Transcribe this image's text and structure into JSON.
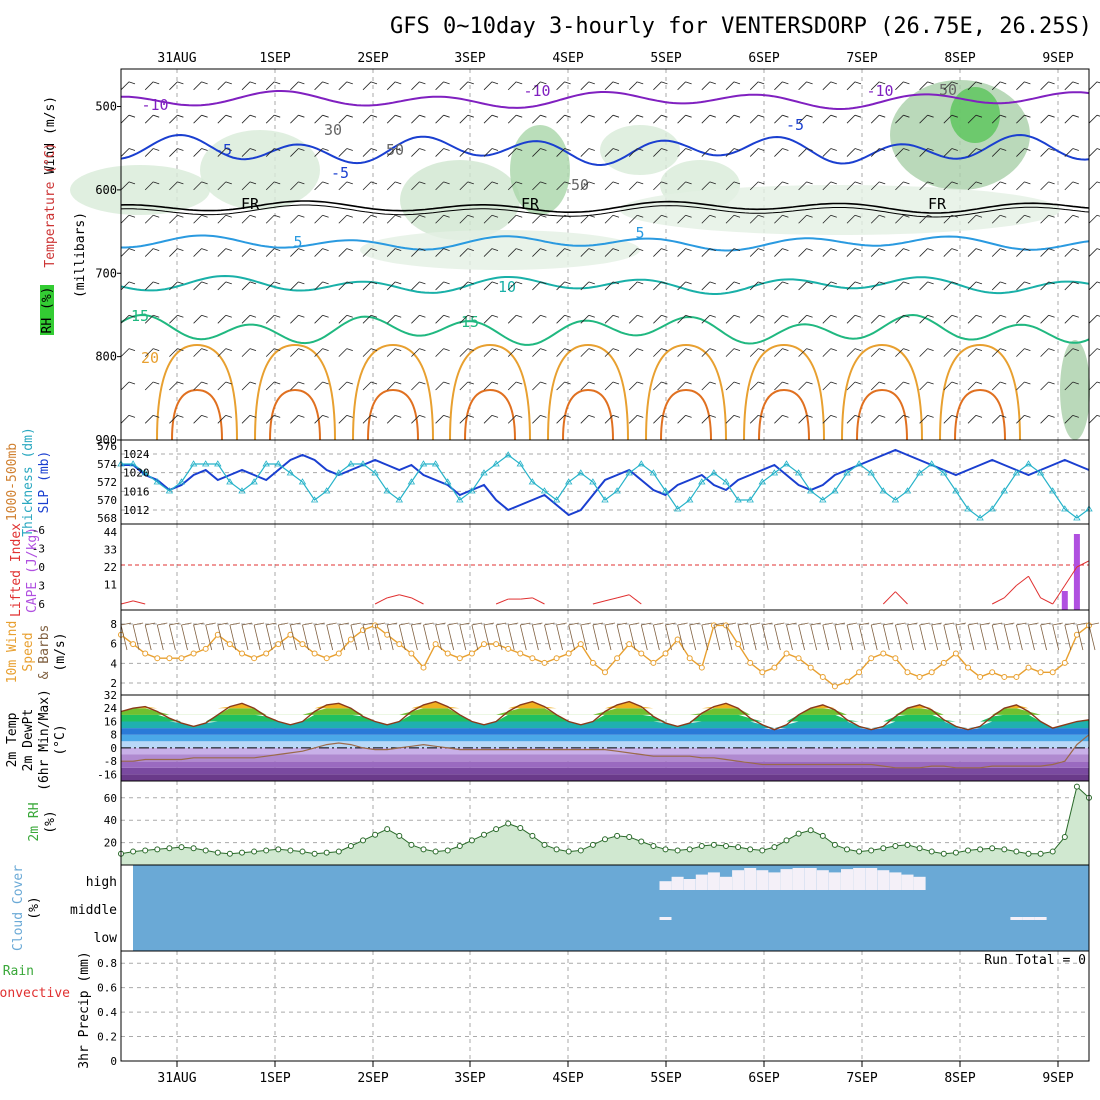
{
  "title": "GFS 0~10day 3-hourly for VENTERSDORP (26.75E, 26.25S)",
  "days": [
    "31AUG",
    "1SEP",
    "2SEP",
    "3SEP",
    "4SEP",
    "5SEP",
    "6SEP",
    "7SEP",
    "8SEP",
    "9SEP"
  ],
  "run_total": "Run Total = 0",
  "colors": {
    "slp": "#1a3fd0",
    "thickness": "#27b3c9",
    "cape": "#b050e0",
    "lifted": "#e03030",
    "wind": "#e8a030",
    "barb": "#806040",
    "temp_orange": "#e8a030",
    "dewpt": "#9a6a4a",
    "rh_green": "#3aa83a",
    "cloud": "#6aa9d6",
    "purple": "#8020c0"
  },
  "panels": {
    "upper": {
      "ylabels": [
        "Wind (m/s)",
        "Temperature (°C)",
        "RH (%)",
        "(millibars)"
      ],
      "yticks": [
        "500",
        "600",
        "700",
        "800",
        "900"
      ],
      "contour_labels": [
        "-10",
        "-10",
        "-10",
        "-5",
        "-5",
        "-5",
        "FR",
        "FR",
        "FR",
        "5",
        "5",
        "10",
        "15",
        "15",
        "20",
        "30",
        "50",
        "50",
        "50"
      ]
    },
    "slp": {
      "ylabels": [
        "1000-500mb",
        "Thickness (dm)",
        "SLP (mb)"
      ],
      "left_ticks": [
        "576",
        "574",
        "572",
        "570",
        "568"
      ],
      "right_ticks": [
        "1024",
        "1020",
        "1016",
        "1012"
      ]
    },
    "cape": {
      "ylabels": [
        "Lifted Index",
        "CAPE (J/kg)"
      ],
      "left_ticks": [
        "-6",
        "-3",
        "0",
        "3",
        "6"
      ],
      "right_ticks": [
        "44",
        "33",
        "22",
        "11"
      ]
    },
    "wind": {
      "ylabels": [
        "10m Wind",
        "Speed",
        "& Barbs",
        "(m/s)"
      ],
      "ticks": [
        "8",
        "6",
        "4",
        "2"
      ]
    },
    "temp": {
      "ylabels": [
        "2m Temp",
        "2m DewPt",
        "(6hr Min/Max)",
        "(°C)"
      ],
      "ticks": [
        "32",
        "24",
        "16",
        "8",
        "0",
        "-8",
        "-16"
      ]
    },
    "rh": {
      "ylabels": [
        "2m RH",
        "(%)"
      ],
      "ticks": [
        "60",
        "40",
        "20"
      ]
    },
    "cloud": {
      "ylabels": [
        "Cloud Cover",
        "(%)"
      ],
      "ticks": [
        "high",
        "middle",
        "low"
      ]
    },
    "precip": {
      "ylabels": [
        "Total / Rain",
        "Convective",
        "3hr Precip (mm)"
      ],
      "ticks": [
        "0.8",
        "0.6",
        "0.4",
        "0.2",
        "0"
      ]
    }
  },
  "chart_data": [
    {
      "type": "line",
      "panel": "slp",
      "title": "",
      "series": [
        {
          "name": "SLP (mb)",
          "values": [
            1023,
            1023,
            1021,
            1020,
            1018,
            1019,
            1021,
            1022,
            1020,
            1021,
            1022,
            1021,
            1020,
            1022,
            1024,
            1025,
            1024,
            1022,
            1021,
            1022,
            1023,
            1024,
            1023,
            1022,
            1023,
            1021,
            1020,
            1019,
            1017,
            1018,
            1019,
            1016,
            1014,
            1015,
            1016,
            1017,
            1015,
            1013,
            1014,
            1017,
            1020,
            1021,
            1022,
            1020,
            1018,
            1017,
            1019,
            1020,
            1021,
            1019,
            1018,
            1020,
            1021,
            1022,
            1023,
            1021,
            1019,
            1018,
            1019,
            1021,
            1022,
            1023,
            1024,
            1025,
            1026,
            1025,
            1024,
            1023,
            1022,
            1021,
            1022,
            1023,
            1024,
            1023,
            1022,
            1021,
            1022,
            1023,
            1024,
            1023,
            1022
          ]
        },
        {
          "name": "1000-500mb Thickness (dm)",
          "values": [
            574,
            574,
            573,
            572,
            571,
            572,
            574,
            574,
            574,
            572,
            571,
            572,
            574,
            574,
            573,
            572,
            570,
            571,
            573,
            574,
            574,
            573,
            571,
            570,
            572,
            574,
            574,
            572,
            570,
            571,
            573,
            574,
            575,
            574,
            572,
            571,
            570,
            572,
            573,
            572,
            570,
            571,
            573,
            574,
            573,
            571,
            569,
            570,
            572,
            573,
            572,
            570,
            570,
            572,
            573,
            574,
            573,
            571,
            570,
            571,
            573,
            574,
            573,
            571,
            570,
            571,
            573,
            574,
            573,
            571,
            569,
            568,
            569,
            571,
            573,
            574,
            573,
            571,
            569,
            568,
            569
          ]
        }
      ]
    },
    {
      "type": "bar",
      "panel": "cape",
      "series": [
        {
          "name": "CAPE (J/kg)",
          "values": [
            0,
            0,
            0,
            0,
            0,
            0,
            0,
            0,
            0,
            0,
            0,
            0,
            0,
            0,
            0,
            0,
            0,
            0,
            0,
            0,
            0,
            0,
            0,
            0,
            0,
            0,
            0,
            0,
            0,
            0,
            0,
            0,
            0,
            0,
            0,
            0,
            0,
            0,
            0,
            0,
            0,
            0,
            0,
            0,
            0,
            0,
            0,
            0,
            0,
            0,
            0,
            0,
            0,
            0,
            0,
            0,
            0,
            0,
            0,
            0,
            0,
            0,
            0,
            0,
            0,
            0,
            0,
            0,
            0,
            0,
            0,
            0,
            0,
            0,
            0,
            0,
            0,
            0,
            11,
            44,
            0
          ]
        },
        {
          "name": "Lifted Index",
          "values": [
            6,
            5.5,
            6,
            6,
            6,
            6,
            6,
            6,
            6,
            6,
            6,
            6,
            6,
            6,
            6,
            6,
            6,
            6,
            6,
            6,
            6,
            6,
            5,
            4.5,
            5,
            6,
            6,
            6,
            6,
            6,
            6,
            6,
            5.2,
            5.2,
            5,
            6,
            6,
            6,
            6,
            6,
            5.5,
            5,
            4.5,
            6,
            6,
            6,
            6,
            6,
            6,
            6,
            6,
            6,
            6,
            6,
            6,
            6,
            6,
            6,
            6,
            6,
            6,
            6,
            6,
            6,
            4,
            6,
            6,
            6,
            6,
            6,
            6,
            6,
            6,
            5,
            3,
            1.5,
            5,
            6,
            3,
            0,
            -1
          ]
        }
      ]
    },
    {
      "type": "line",
      "panel": "wind",
      "series": [
        {
          "name": "10m Wind Speed (m/s)",
          "values": [
            7,
            6,
            5,
            4.5,
            4.5,
            4.5,
            5,
            5.5,
            7,
            6,
            5,
            4.5,
            5,
            6,
            7,
            6,
            5,
            4.5,
            5,
            6.5,
            7.5,
            8,
            7,
            6,
            5,
            3.5,
            6,
            5,
            4.5,
            5,
            6,
            6,
            5.5,
            5,
            4.5,
            4,
            4.5,
            5,
            6,
            4,
            3,
            4.5,
            6,
            5,
            4,
            5,
            6.5,
            4.5,
            3.5,
            8,
            8,
            6,
            4,
            3,
            3.5,
            5,
            4.5,
            3.5,
            2.5,
            1.5,
            2,
            3,
            4.5,
            5,
            4.5,
            3,
            2.5,
            3,
            4,
            5,
            3.5,
            2.5,
            3,
            2.5,
            2.5,
            3.5,
            3,
            3,
            4,
            7,
            8
          ]
        }
      ]
    },
    {
      "type": "area",
      "panel": "temp",
      "series": [
        {
          "name": "2m Temp (°C)",
          "values": [
            22,
            24,
            25,
            22,
            18,
            15,
            13,
            15,
            20,
            25,
            27,
            24,
            19,
            16,
            14,
            16,
            22,
            26,
            27,
            24,
            19,
            16,
            14,
            16,
            22,
            26,
            28,
            25,
            20,
            16,
            14,
            16,
            22,
            26,
            28,
            25,
            20,
            16,
            14,
            16,
            22,
            26,
            28,
            25,
            19,
            15,
            13,
            15,
            21,
            25,
            27,
            24,
            18,
            14,
            11,
            14,
            20,
            24,
            26,
            23,
            17,
            13,
            11,
            13,
            19,
            24,
            26,
            23,
            17,
            13,
            11,
            13,
            19,
            24,
            26,
            22,
            16,
            12,
            14,
            16,
            17
          ]
        },
        {
          "name": "2m DewPt (°C)",
          "values": [
            -8,
            -8,
            -7,
            -7,
            -7,
            -7,
            -6,
            -6,
            -6,
            -6,
            -6,
            -6,
            -5,
            -4,
            -3,
            -2,
            0,
            2,
            3,
            2,
            0,
            -1,
            -1,
            0,
            1,
            2,
            1,
            0,
            -1,
            -1,
            -1,
            -1,
            -1,
            -1,
            -1,
            -1,
            -1,
            -1,
            -1,
            -1,
            -1,
            -2,
            -3,
            -4,
            -5,
            -5,
            -5,
            -5,
            -6,
            -6,
            -7,
            -8,
            -9,
            -10,
            -10,
            -10,
            -10,
            -10,
            -10,
            -10,
            -10,
            -10,
            -10,
            -11,
            -12,
            -12,
            -12,
            -11,
            -11,
            -12,
            -12,
            -12,
            -11,
            -11,
            -11,
            -11,
            -11,
            -10,
            -8,
            2,
            8
          ]
        }
      ]
    },
    {
      "type": "line",
      "panel": "rh",
      "series": [
        {
          "name": "2m RH (%)",
          "values": [
            10,
            12,
            13,
            14,
            15,
            16,
            15,
            13,
            11,
            10,
            11,
            12,
            13,
            14,
            13,
            12,
            10,
            11,
            12,
            17,
            22,
            27,
            32,
            26,
            18,
            14,
            12,
            13,
            17,
            22,
            27,
            32,
            37,
            33,
            26,
            18,
            14,
            12,
            13,
            18,
            23,
            26,
            25,
            21,
            17,
            14,
            13,
            14,
            17,
            18,
            17,
            16,
            14,
            13,
            16,
            22,
            28,
            31,
            26,
            18,
            14,
            12,
            13,
            15,
            17,
            18,
            15,
            12,
            10,
            11,
            13,
            14,
            15,
            14,
            12,
            10,
            10,
            12,
            25,
            70,
            60
          ]
        }
      ]
    },
    {
      "type": "bar",
      "panel": "cloud",
      "series": [
        {
          "name": "high",
          "values": [
            0,
            0,
            0,
            0,
            0,
            0,
            0,
            0,
            0,
            0,
            0,
            0,
            0,
            0,
            0,
            0,
            0,
            0,
            0,
            0,
            0,
            0,
            0,
            0,
            0,
            0,
            0,
            0,
            0,
            0,
            0,
            0,
            0,
            0,
            0,
            0,
            0,
            0,
            0,
            0,
            0,
            0,
            0,
            0,
            0,
            40,
            60,
            50,
            70,
            80,
            60,
            90,
            100,
            90,
            80,
            95,
            100,
            100,
            90,
            80,
            95,
            100,
            100,
            90,
            80,
            70,
            60,
            0,
            0,
            0,
            0,
            0,
            0,
            0,
            0,
            0,
            0,
            0,
            0,
            0,
            0
          ]
        },
        {
          "name": "middle",
          "values": [
            0,
            0,
            0,
            0,
            0,
            0,
            0,
            0,
            0,
            0,
            0,
            0,
            0,
            0,
            0,
            0,
            0,
            0,
            0,
            0,
            0,
            0,
            0,
            0,
            0,
            0,
            0,
            0,
            0,
            0,
            0,
            0,
            0,
            0,
            0,
            0,
            0,
            0,
            0,
            0,
            0,
            0,
            0,
            0,
            0,
            5,
            0,
            0,
            0,
            0,
            0,
            0,
            0,
            0,
            0,
            0,
            0,
            0,
            0,
            0,
            0,
            0,
            0,
            0,
            0,
            0,
            0,
            0,
            0,
            0,
            0,
            0,
            0,
            0,
            5,
            5,
            5,
            0,
            0,
            0,
            0
          ]
        },
        {
          "name": "low",
          "values": [
            0,
            0,
            0,
            0,
            0,
            0,
            0,
            0,
            0,
            0,
            0,
            0,
            0,
            0,
            0,
            0,
            0,
            0,
            0,
            0,
            0,
            0,
            0,
            0,
            0,
            0,
            0,
            0,
            0,
            0,
            0,
            0,
            0,
            0,
            0,
            0,
            0,
            0,
            0,
            0,
            0,
            0,
            0,
            0,
            0,
            0,
            0,
            0,
            0,
            0,
            0,
            0,
            0,
            0,
            0,
            0,
            0,
            0,
            0,
            0,
            0,
            0,
            0,
            0,
            0,
            0,
            0,
            0,
            0,
            0,
            0,
            0,
            0,
            0,
            0,
            0,
            0,
            0,
            0,
            0,
            0
          ]
        }
      ]
    },
    {
      "type": "bar",
      "panel": "precip",
      "ylim": [
        0,
        0.9
      ],
      "series": [
        {
          "name": "3hr Precip (mm)",
          "values": [
            0,
            0,
            0,
            0,
            0,
            0,
            0,
            0,
            0,
            0,
            0,
            0,
            0,
            0,
            0,
            0,
            0,
            0,
            0,
            0,
            0,
            0,
            0,
            0,
            0,
            0,
            0,
            0,
            0,
            0,
            0,
            0,
            0,
            0,
            0,
            0,
            0,
            0,
            0,
            0,
            0,
            0,
            0,
            0,
            0,
            0,
            0,
            0,
            0,
            0,
            0,
            0,
            0,
            0,
            0,
            0,
            0,
            0,
            0,
            0,
            0,
            0,
            0,
            0,
            0,
            0,
            0,
            0,
            0,
            0,
            0,
            0,
            0,
            0,
            0,
            0,
            0,
            0,
            0,
            0,
            0
          ]
        }
      ]
    }
  ]
}
